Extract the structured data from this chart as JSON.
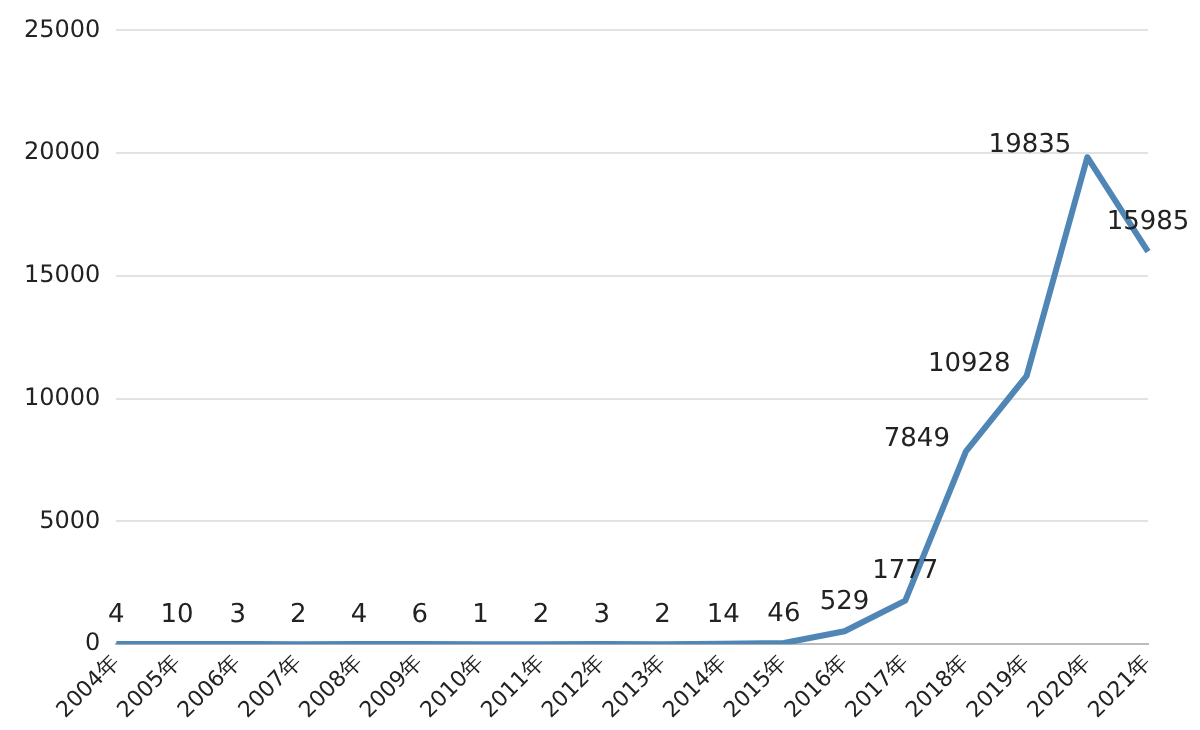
{
  "chart_data": {
    "type": "line",
    "categories": [
      "2004年",
      "2005年",
      "2006年",
      "2007年",
      "2008年",
      "2009年",
      "2010年",
      "2011年",
      "2012年",
      "2013年",
      "2014年",
      "2015年",
      "2016年",
      "2017年",
      "2018年",
      "2019年",
      "2020年",
      "2021年"
    ],
    "series": [
      {
        "color": "#4f86b5",
        "values": [
          4,
          10,
          3,
          2,
          4,
          6,
          1,
          2,
          3,
          2,
          14,
          46,
          529,
          1777,
          7849,
          10928,
          19835,
          15985
        ]
      }
    ],
    "ylim": [
      0,
      25000
    ],
    "yticks": [
      0,
      5000,
      10000,
      15000,
      20000,
      25000
    ],
    "grid": "y",
    "legend": false,
    "marker": "none",
    "line_style": "solid",
    "data_labels": true
  }
}
